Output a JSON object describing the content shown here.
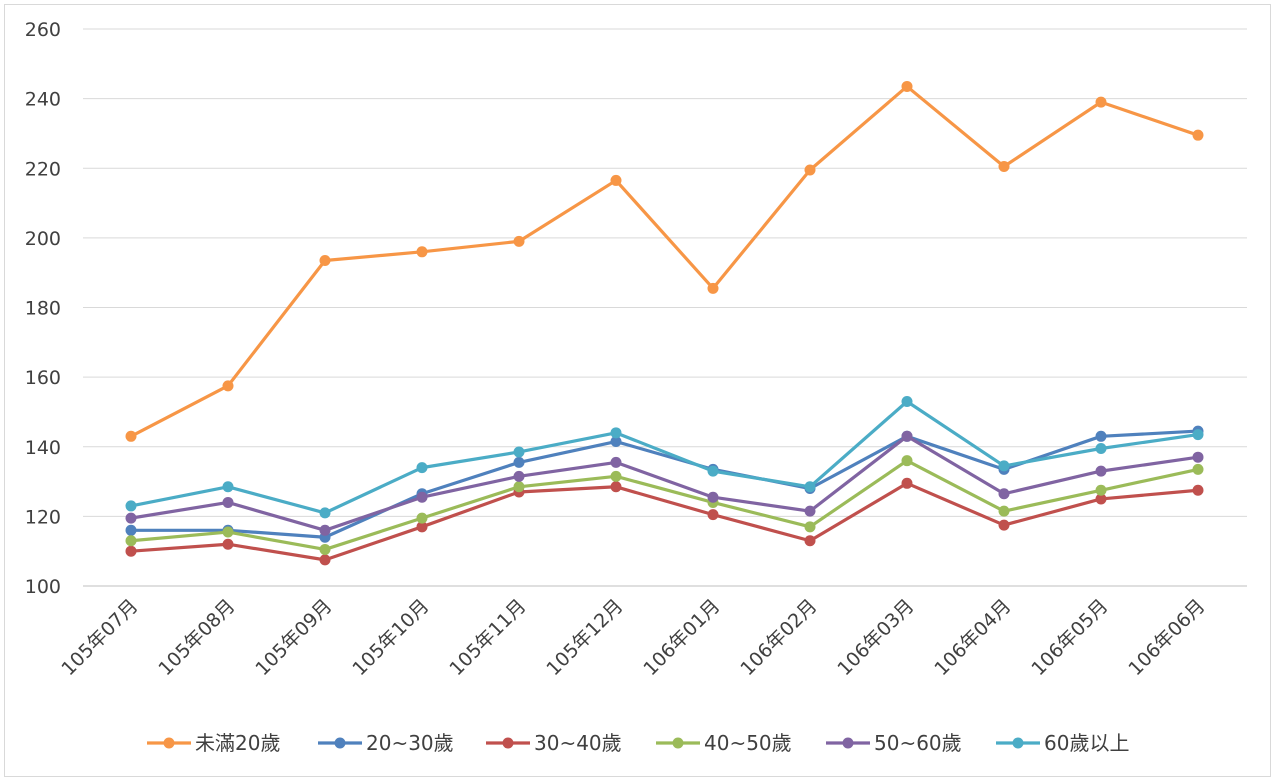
{
  "chart_data": {
    "type": "line",
    "title": "",
    "xlabel": "",
    "ylabel": "",
    "ylim": [
      100,
      260
    ],
    "yticks": [
      100,
      120,
      140,
      160,
      180,
      200,
      220,
      240,
      260
    ],
    "grid": true,
    "legend_position": "bottom",
    "categories": [
      "105年07月",
      "105年08月",
      "105年09月",
      "105年10月",
      "105年11月",
      "105年12月",
      "106年01月",
      "106年02月",
      "106年03月",
      "106年04月",
      "106年05月",
      "106年06月"
    ],
    "series": [
      {
        "name": "未滿20歲",
        "color": "#f79646",
        "values": [
          143,
          157.5,
          193.5,
          196,
          199,
          216.5,
          185.5,
          219.5,
          243.5,
          220.5,
          239,
          229.5
        ]
      },
      {
        "name": "20~30歲",
        "color": "#4f81bd",
        "values": [
          116,
          116,
          114,
          126.5,
          135.5,
          141.5,
          133.5,
          128,
          143,
          133.5,
          143,
          144.5
        ]
      },
      {
        "name": "30~40歲",
        "color": "#c0504d",
        "values": [
          110,
          112,
          107.5,
          117,
          127,
          128.5,
          120.5,
          113,
          129.5,
          117.5,
          125,
          127.5
        ]
      },
      {
        "name": "40~50歲",
        "color": "#9bbb59",
        "values": [
          113,
          115.5,
          110.5,
          119.5,
          128.5,
          131.5,
          124,
          117,
          136,
          121.5,
          127.5,
          133.5
        ]
      },
      {
        "name": "50~60歲",
        "color": "#8064a2",
        "values": [
          119.5,
          124,
          116,
          125.5,
          131.5,
          135.5,
          125.5,
          121.5,
          143,
          126.5,
          133,
          137
        ]
      },
      {
        "name": "60歲以上",
        "color": "#4bacc6",
        "values": [
          123,
          128.5,
          121,
          134,
          138.5,
          144,
          133,
          128.5,
          153,
          134.5,
          139.5,
          143.5
        ]
      }
    ]
  }
}
